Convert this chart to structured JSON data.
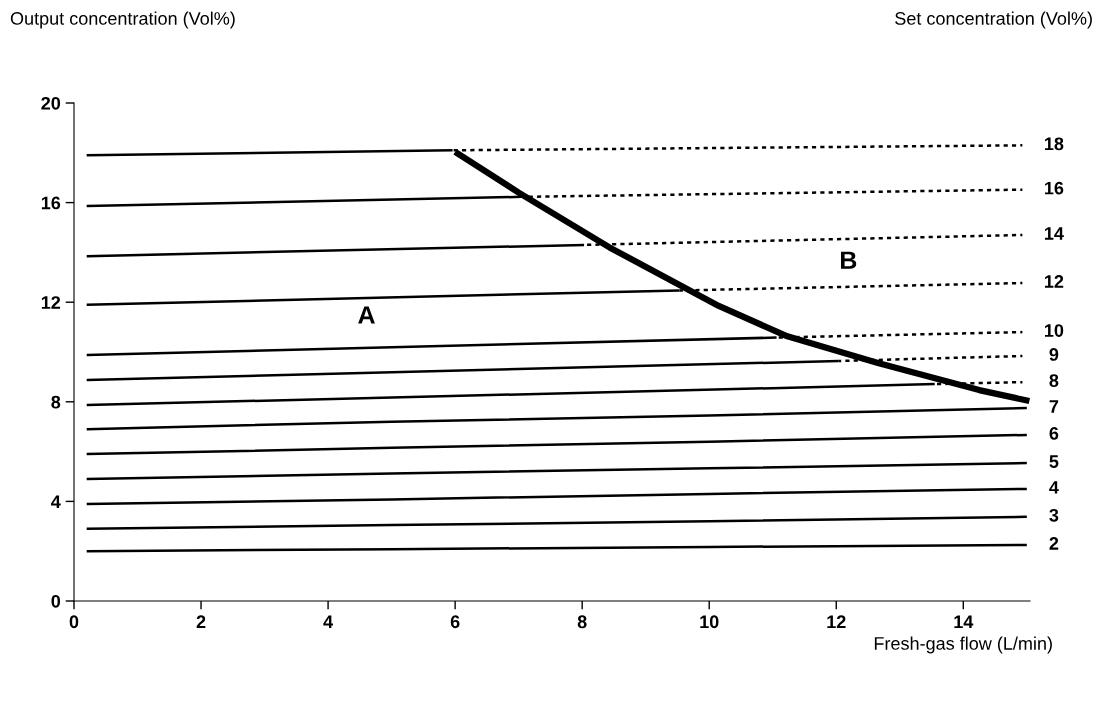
{
  "chart_data": {
    "type": "line",
    "ylabel": "Output concentration (Vol%)",
    "y2label": "Set concentration (Vol%)",
    "xlabel": "Fresh-gas flow (L/min)",
    "xlim": [
      0,
      15.05
    ],
    "ylim": [
      0,
      20
    ],
    "xticks": [
      0,
      2,
      4,
      6,
      8,
      10,
      12,
      14
    ],
    "yticks": [
      0,
      4,
      8,
      12,
      16,
      20
    ],
    "grid": false,
    "legend": false,
    "marker": "none",
    "series": [
      {
        "name": "2",
        "color": "#000000",
        "line_style": "solid",
        "x": [
          0.2,
          5,
          10,
          15
        ],
        "values": [
          2.0,
          2.08,
          2.17,
          2.25
        ]
      },
      {
        "name": "3",
        "color": "#000000",
        "line_style": "solid",
        "x": [
          0.2,
          5,
          10,
          15
        ],
        "values": [
          2.9,
          3.05,
          3.2,
          3.38
        ]
      },
      {
        "name": "4",
        "color": "#000000",
        "line_style": "solid",
        "x": [
          0.2,
          5,
          10,
          15
        ],
        "values": [
          3.9,
          4.08,
          4.3,
          4.5
        ]
      },
      {
        "name": "5",
        "color": "#000000",
        "line_style": "solid",
        "x": [
          0.2,
          5,
          10,
          15
        ],
        "values": [
          4.9,
          5.12,
          5.33,
          5.54
        ]
      },
      {
        "name": "6",
        "color": "#000000",
        "line_style": "solid",
        "x": [
          0.2,
          5,
          10,
          15
        ],
        "values": [
          5.9,
          6.15,
          6.4,
          6.67
        ]
      },
      {
        "name": "7",
        "color": "#000000",
        "line_style": "solid",
        "x": [
          0.2,
          5,
          10,
          15
        ],
        "values": [
          6.9,
          7.2,
          7.45,
          7.75
        ]
      },
      {
        "color": "#000000",
        "line_style": "solid",
        "x": [
          0.2,
          13.55
        ],
        "values": [
          7.87,
          8.71
        ]
      },
      {
        "name": "8",
        "color": "#000000",
        "line_style": "dashed",
        "x": [
          13.55,
          14.93
        ],
        "values": [
          8.71,
          8.79
        ]
      },
      {
        "color": "#000000",
        "line_style": "solid",
        "x": [
          0.2,
          12.04
        ],
        "values": [
          8.88,
          9.64
        ]
      },
      {
        "name": "9",
        "color": "#000000",
        "line_style": "dashed",
        "x": [
          12.04,
          14.93
        ],
        "values": [
          9.64,
          9.84
        ]
      },
      {
        "color": "#000000",
        "line_style": "solid",
        "x": [
          0.2,
          11.06
        ],
        "values": [
          9.88,
          10.58
        ]
      },
      {
        "name": "10",
        "color": "#000000",
        "line_style": "dashed",
        "x": [
          11.06,
          14.93
        ],
        "values": [
          10.58,
          10.8
        ]
      },
      {
        "color": "#000000",
        "line_style": "solid",
        "x": [
          0.2,
          9.53
        ],
        "values": [
          11.9,
          12.47
        ]
      },
      {
        "name": "12",
        "color": "#000000",
        "line_style": "dashed",
        "x": [
          9.53,
          14.93
        ],
        "values": [
          12.47,
          12.77
        ]
      },
      {
        "color": "#000000",
        "line_style": "solid",
        "x": [
          0.2,
          8.03
        ],
        "values": [
          13.85,
          14.3
        ]
      },
      {
        "name": "14",
        "color": "#000000",
        "line_style": "dashed",
        "x": [
          8.03,
          14.93
        ],
        "values": [
          14.3,
          14.7
        ]
      },
      {
        "color": "#000000",
        "line_style": "solid",
        "x": [
          0.2,
          7.04
        ],
        "values": [
          15.86,
          16.23
        ]
      },
      {
        "name": "16",
        "color": "#000000",
        "line_style": "dashed",
        "x": [
          7.04,
          14.93
        ],
        "values": [
          16.23,
          16.52
        ]
      },
      {
        "color": "#000000",
        "line_style": "solid",
        "x": [
          0.2,
          5.96
        ],
        "values": [
          17.9,
          18.1
        ]
      },
      {
        "name": "18",
        "color": "#000000",
        "line_style": "dashed",
        "x": [
          5.96,
          14.93
        ],
        "values": [
          18.1,
          18.3
        ]
      },
      {
        "color": "#000000",
        "line_style": "solid",
        "x": [
          6.0,
          7.0,
          8.43,
          10.15,
          11.23,
          12.67,
          14.25,
          15.04
        ],
        "values": [
          18.04,
          16.4,
          14.2,
          11.85,
          10.63,
          9.55,
          8.47,
          8.03
        ]
      }
    ],
    "annotations": [
      "A",
      "B"
    ]
  }
}
